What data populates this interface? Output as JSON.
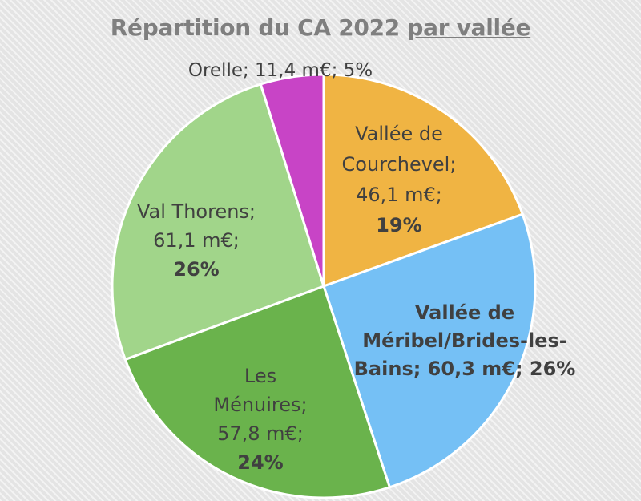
{
  "chart_data": {
    "type": "pie",
    "title": "Répartition du CA 2022",
    "title_suffix": "par vallée",
    "unit": "m€",
    "slices": [
      {
        "name": "Vallée de Courchevel",
        "value": 46.1,
        "value_label": "46,1 m€",
        "percent": 19,
        "percent_label": "19%",
        "color": "#f0b443",
        "label_lines": [
          "Vallée de",
          "Courchevel;",
          "46,1 m€;",
          "19%"
        ],
        "label_weights": [
          "normal",
          "normal",
          "normal",
          "bold"
        ]
      },
      {
        "name": "Vallée de Méribel/Brides-les-Bains",
        "value": 60.3,
        "value_label": "60,3 m€",
        "percent": 26,
        "percent_label": "26%",
        "color": "#75c0f5",
        "label_lines": [
          "Vallée de",
          "Méribel/Brides-les-",
          "Bains; 60,3 m€; 26%"
        ],
        "label_weights": [
          "bold",
          "bold",
          "bold"
        ]
      },
      {
        "name": "Les Ménuires",
        "value": 57.8,
        "value_label": "57,8 m€",
        "percent": 24,
        "percent_label": "24%",
        "color": "#6ab34c",
        "label_lines": [
          "Les",
          "Ménuires;",
          "57,8 m€;",
          "24%"
        ],
        "label_weights": [
          "normal",
          "normal",
          "normal",
          "bold"
        ]
      },
      {
        "name": "Val Thorens",
        "value": 61.1,
        "value_label": "61,1 m€",
        "percent": 26,
        "percent_label": "26%",
        "color": "#a1d58a",
        "label_lines": [
          "Val Thorens;",
          "61,1 m€;",
          "26%"
        ],
        "label_weights": [
          "normal",
          "normal",
          "bold"
        ]
      },
      {
        "name": "Orelle",
        "value": 11.4,
        "value_label": "11,4 m€",
        "percent": 5,
        "percent_label": "5%",
        "color": "#c844c6",
        "label_lines": [
          "Orelle; 11,4 m€; 5%"
        ],
        "label_weights": [
          "normal"
        ]
      }
    ],
    "start_angle_deg": 0,
    "direction": "clockwise",
    "slice_border_color": "#ffffff"
  }
}
